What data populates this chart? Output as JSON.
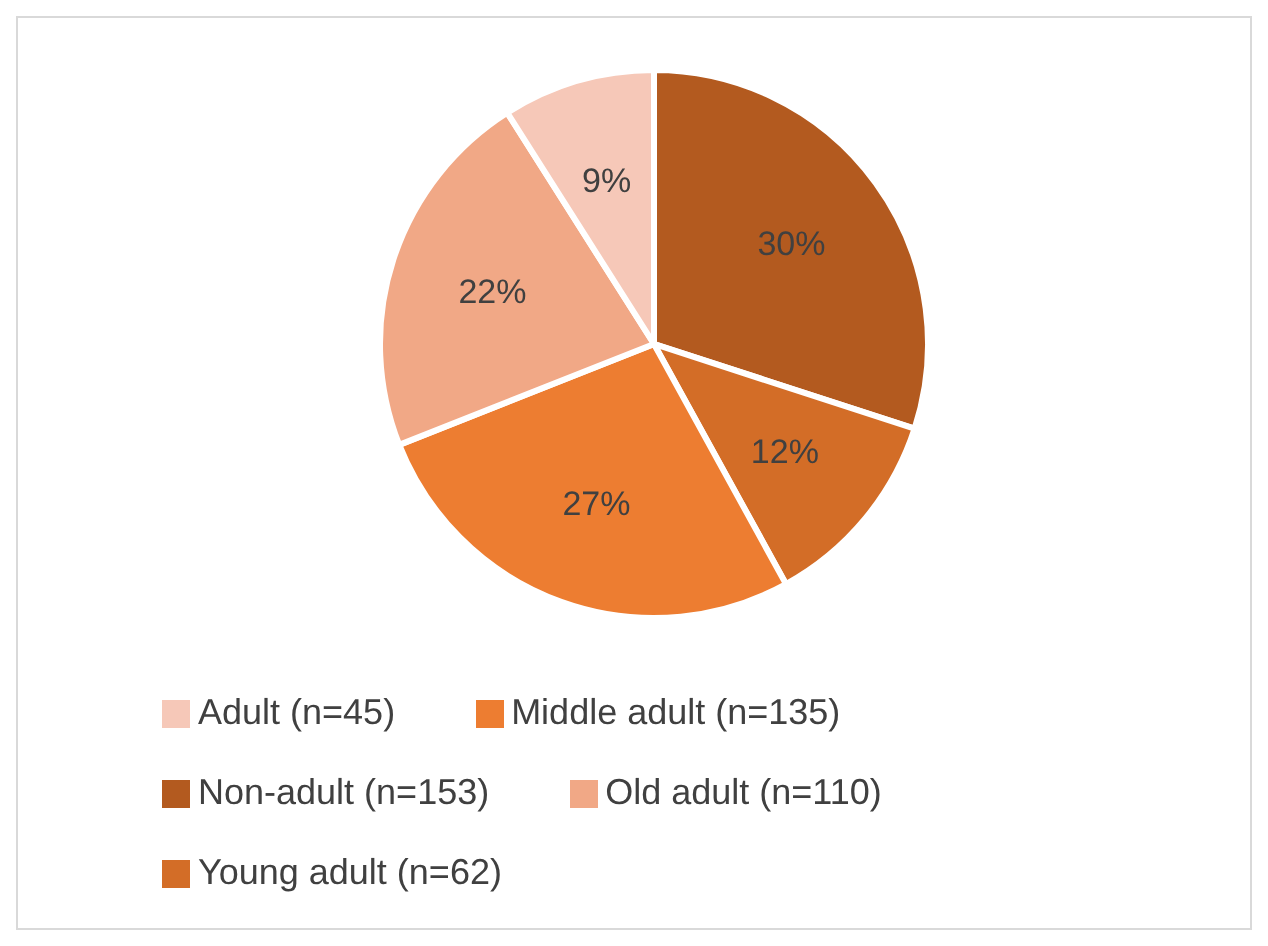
{
  "chart_data": {
    "type": "pie",
    "categories": [
      "Non-adult (n=153)",
      "Young adult (n=62)",
      "Middle adult (n=135)",
      "Old adult (n=110)",
      "Adult (n=45)"
    ],
    "values": [
      30,
      12,
      27,
      22,
      9
    ],
    "value_labels": [
      "30%",
      "12%",
      "27%",
      "22%",
      "9%"
    ],
    "colors": [
      "#b35a1f",
      "#d36d27",
      "#ed7d31",
      "#f1a886",
      "#f6c8b8"
    ],
    "legend": "bottom"
  }
}
